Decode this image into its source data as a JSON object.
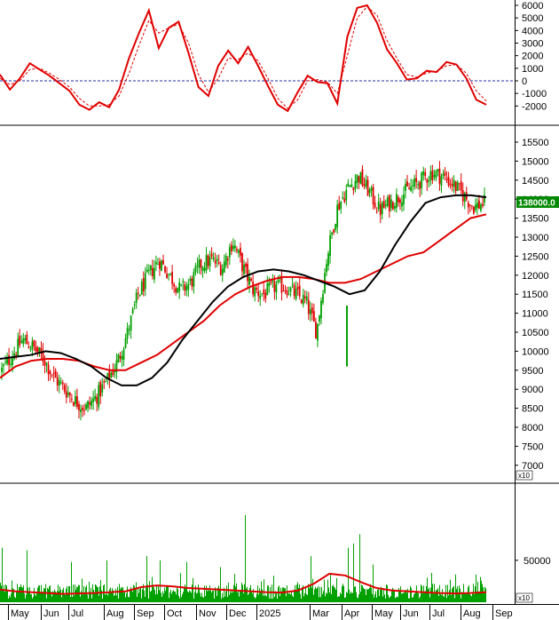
{
  "chart_data": [
    {
      "type": "line",
      "panel": "oscillator",
      "ylim": [
        -3000,
        7000
      ],
      "yticks": [
        "6000",
        "5000",
        "4000",
        "3000",
        "2000",
        "1000",
        "0",
        "-1000",
        "-2000"
      ],
      "ytick_values": [
        6000,
        5000,
        4000,
        3000,
        2000,
        1000,
        0,
        -1000,
        -2000
      ],
      "zero_line": "dashed-blue",
      "series": [
        {
          "color": "#e00000",
          "style": "solid",
          "values": [
            500,
            -700,
            200,
            1400,
            900,
            400,
            -200,
            -800,
            -1900,
            -2300,
            -1700,
            -2100,
            -700,
            1800,
            3800,
            5600,
            2600,
            4200,
            4700,
            2200,
            -500,
            -1200,
            1200,
            2400,
            1400,
            2700,
            1200,
            -400,
            -1900,
            -2400,
            -900,
            400,
            -100,
            -200,
            -1800,
            3500,
            5800,
            6000,
            4600,
            2500,
            1400,
            100,
            200,
            800,
            700,
            1500,
            1300,
            200,
            -1500,
            -1900
          ]
        },
        {
          "color": "#e00000",
          "style": "dashed",
          "values": [
            200,
            -300,
            0,
            900,
            1000,
            600,
            100,
            -500,
            -1400,
            -2000,
            -2000,
            -1900,
            -1200,
            600,
            2800,
            4800,
            3800,
            4200,
            4500,
            3000,
            500,
            -900,
            200,
            1800,
            1700,
            2200,
            1600,
            200,
            -1400,
            -2200,
            -1500,
            0,
            100,
            -100,
            -1000,
            2000,
            5000,
            5900,
            5200,
            3200,
            1800,
            500,
            300,
            600,
            800,
            1200,
            1300,
            600,
            -800,
            -1600
          ]
        }
      ]
    },
    {
      "type": "candlestick",
      "panel": "price",
      "ylim": [
        6300,
        16000
      ],
      "yticks": [
        "15500",
        "15000",
        "14500",
        "14000",
        "13500",
        "13000",
        "12500",
        "12000",
        "11500",
        "11000",
        "10500",
        "10000",
        "9500",
        "9000",
        "8500",
        "8000",
        "7500",
        "7000"
      ],
      "ytick_values": [
        15500,
        15000,
        14500,
        14000,
        13500,
        13000,
        12500,
        12000,
        11500,
        11000,
        10500,
        10000,
        9500,
        9000,
        8500,
        8000,
        7500,
        7000
      ],
      "last_price_label": "138000.0",
      "last_price_value": 13800,
      "axis_multiplier": "x10",
      "up_color": "#00a000",
      "down_color": "#e00000",
      "close_path": [
        9500,
        9900,
        10300,
        10100,
        9800,
        9300,
        9000,
        8700,
        8500,
        8800,
        9200,
        9700,
        10500,
        11500,
        12000,
        12400,
        12000,
        11600,
        11800,
        12300,
        12400,
        12200,
        12900,
        12200,
        11600,
        11500,
        11700,
        11700,
        11500,
        11300,
        10500,
        12500,
        13800,
        14300,
        14600,
        14200,
        13700,
        13900,
        14100,
        14300,
        14500,
        14700,
        14600,
        14400,
        14100,
        13800,
        13900
      ],
      "ma_short": {
        "color": "#000000",
        "values": [
          9800,
          9850,
          9900,
          10000,
          9950,
          9800,
          9600,
          9300,
          9100,
          9100,
          9300,
          9700,
          10300,
          10800,
          11300,
          11700,
          11950,
          12100,
          12150,
          12100,
          12000,
          11850,
          11700,
          11500,
          11600,
          12100,
          12800,
          13400,
          13900,
          14050,
          14100,
          14100,
          14050
        ]
      },
      "ma_long": {
        "color": "#e00000",
        "values": [
          9300,
          9600,
          9750,
          9800,
          9800,
          9750,
          9600,
          9500,
          9500,
          9700,
          9900,
          10200,
          10500,
          10800,
          11200,
          11500,
          11700,
          11850,
          11950,
          11950,
          11900,
          11800,
          11800,
          11900,
          12100,
          12300,
          12500,
          12600,
          12900,
          13200,
          13500,
          13600
        ]
      }
    },
    {
      "type": "bar",
      "panel": "volume",
      "yticks": [
        "50000"
      ],
      "ytick_values": [
        50000
      ],
      "ylim": [
        0,
        125000
      ],
      "axis_multiplier": "x10",
      "bar_color": "#00a000",
      "ma_color": "#e00000",
      "volume_seed": 7,
      "volume_ma": [
        15000,
        13000,
        12000,
        11000,
        10000,
        10500,
        11000,
        12000,
        13000,
        18000,
        20000,
        19000,
        17000,
        16000,
        15000,
        14000,
        13000,
        12000,
        11500,
        14000,
        22000,
        34000,
        32000,
        24000,
        17000,
        14000,
        13000,
        12000,
        11000,
        10500,
        11000,
        12000
      ],
      "spikes": [
        [
          2,
          65000
        ],
        [
          30,
          62000
        ],
        [
          80,
          48000
        ],
        [
          120,
          50000
        ],
        [
          165,
          55000
        ],
        [
          180,
          50000
        ],
        [
          210,
          48000
        ],
        [
          248,
          42000
        ],
        [
          276,
          104000
        ],
        [
          350,
          55000
        ],
        [
          392,
          65000
        ],
        [
          398,
          70000
        ],
        [
          405,
          81000
        ],
        [
          420,
          45000
        ],
        [
          486,
          35000
        ],
        [
          536,
          33000
        ]
      ]
    }
  ],
  "xaxis": {
    "labels": [
      "May",
      "Jun",
      "Jul",
      "Aug",
      "Sep",
      "Oct",
      "Nov",
      "Dec",
      "2025",
      "Mar",
      "Apr",
      "May",
      "Jun",
      "Jul",
      "Aug",
      "Sep"
    ]
  }
}
